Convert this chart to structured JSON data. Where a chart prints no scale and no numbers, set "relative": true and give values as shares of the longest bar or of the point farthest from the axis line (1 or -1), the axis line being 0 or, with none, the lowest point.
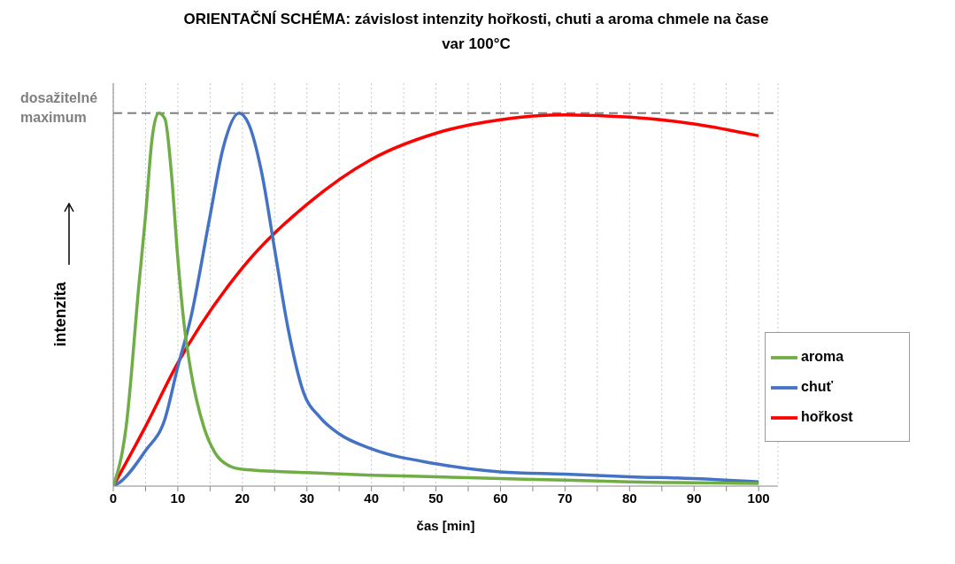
{
  "chart_data": {
    "type": "line",
    "title": "ORIENTAČNÍ SCHÉMA: závislost intenzity hořkosti, chuti a aroma chmele na čase",
    "subtitle": "var 100°C",
    "xlabel": "čas [min]",
    "ylabel": "intenzita",
    "relative": true,
    "xlim": [
      0,
      103
    ],
    "xticks": [
      0,
      {
        "value": 5,
        "label": null
      },
      10,
      {
        "value": 15,
        "label": null
      },
      20,
      {
        "value": 25,
        "label": null
      },
      30,
      {
        "value": 35,
        "label": null
      },
      40,
      {
        "value": 45,
        "label": null
      },
      50,
      {
        "value": 55,
        "label": null
      },
      60,
      {
        "value": 65,
        "label": null
      },
      70,
      {
        "value": 75,
        "label": null
      },
      80,
      {
        "value": 85,
        "label": null
      },
      90,
      {
        "value": 95,
        "label": null
      },
      100
    ],
    "grid": "x",
    "legend": "right",
    "marker": "none",
    "line_style": "solid",
    "ref_lines": [
      {
        "axis": "y",
        "value": 1,
        "label": "dosažitelné maximum",
        "color": "#808080",
        "line_style": "dashed"
      }
    ],
    "series": [
      {
        "name": "hořkost",
        "color": "#ff0000",
        "x": [
          0,
          5,
          10,
          20,
          30,
          40,
          50,
          60,
          70,
          80,
          90,
          100
        ],
        "values": [
          0,
          0.16,
          0.33,
          0.585,
          0.755,
          0.876,
          0.946,
          0.982,
          0.995,
          0.989,
          0.971,
          0.939
        ]
      },
      {
        "name": "chuť",
        "color": "#4472c4",
        "x": [
          0,
          1,
          5,
          8,
          10,
          12,
          15,
          17,
          19.5,
          21,
          23,
          25,
          27,
          29.5,
          32,
          35,
          40,
          50,
          60,
          70,
          80,
          90,
          100
        ],
        "values": [
          0,
          0.01,
          0.095,
          0.18,
          0.32,
          0.45,
          0.725,
          0.905,
          1,
          0.97,
          0.84,
          0.635,
          0.43,
          0.25,
          0.185,
          0.14,
          0.1,
          0.06,
          0.038,
          0.032,
          0.025,
          0.02,
          0.011
        ]
      },
      {
        "name": "aroma",
        "color": "#70ad47",
        "x": [
          0,
          2,
          4,
          5,
          6,
          7,
          8,
          9,
          10,
          11,
          12,
          14,
          16,
          18,
          20,
          30,
          40,
          50,
          60,
          70,
          80,
          90,
          100
        ],
        "values": [
          0,
          0.16,
          0.545,
          0.725,
          0.93,
          1,
          0.985,
          0.84,
          0.61,
          0.43,
          0.31,
          0.16,
          0.083,
          0.054,
          0.045,
          0.036,
          0.029,
          0.025,
          0.02,
          0.016,
          0.011,
          0.009,
          0.007
        ]
      }
    ]
  }
}
